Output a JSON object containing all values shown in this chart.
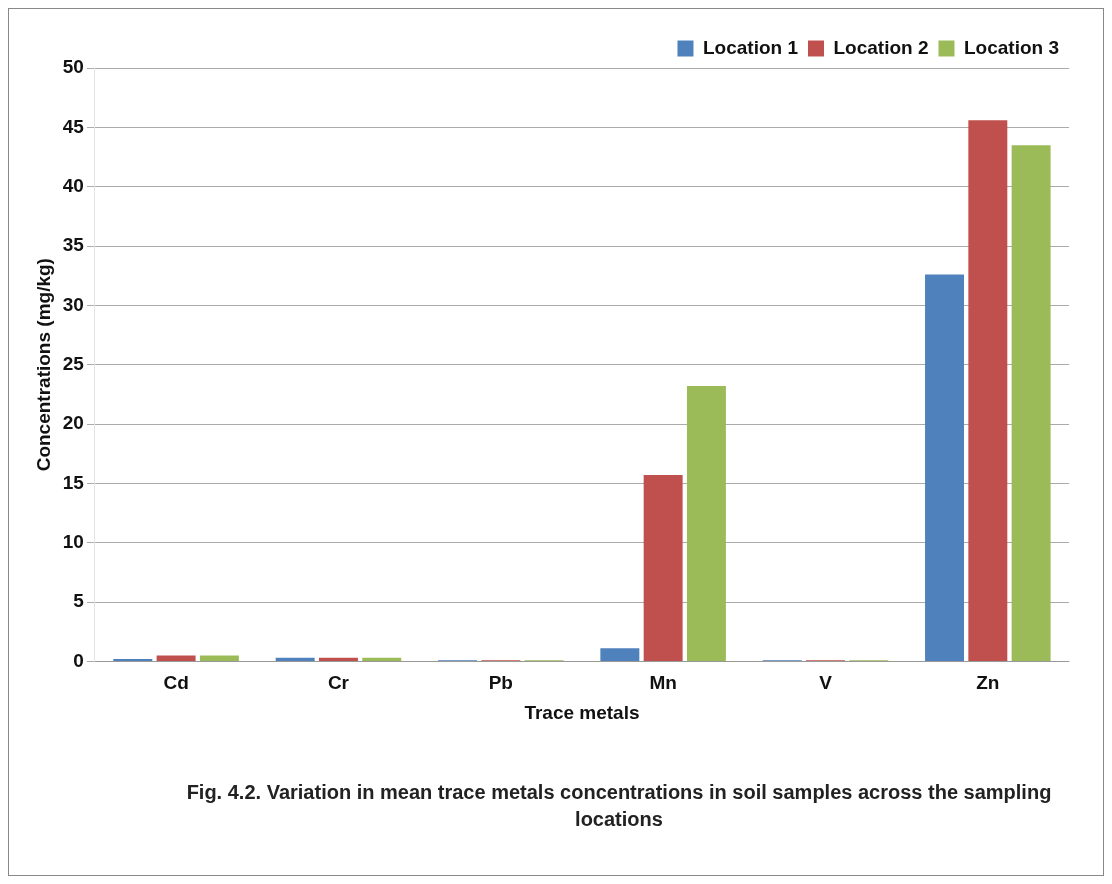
{
  "chart_data": {
    "type": "bar",
    "xlabel": "Trace metals",
    "ylabel": "Concentrations (mg/kg)",
    "categories": [
      "Cd",
      "Cr",
      "Pb",
      "Mn",
      "V",
      "Zn"
    ],
    "series": [
      {
        "name": "Location 1",
        "color": "#4f81bd",
        "values": [
          0.2,
          0.3,
          0.1,
          1.1,
          0.1,
          32.6
        ]
      },
      {
        "name": "Location 2",
        "color": "#c0504d",
        "values": [
          0.5,
          0.3,
          0.1,
          15.7,
          0.1,
          45.6
        ]
      },
      {
        "name": "Location 3",
        "color": "#9bbb59",
        "values": [
          0.5,
          0.3,
          0.1,
          23.2,
          0.1,
          43.5
        ]
      }
    ],
    "ylim": [
      0,
      50
    ],
    "yticks": [
      0,
      5,
      10,
      15,
      20,
      25,
      30,
      35,
      40,
      45,
      50
    ],
    "grid": "y",
    "legend": "top right",
    "annotations": [
      "Fig. 4.2. Variation in mean trace metals concentrations in soil samples across the sampling locations"
    ]
  }
}
